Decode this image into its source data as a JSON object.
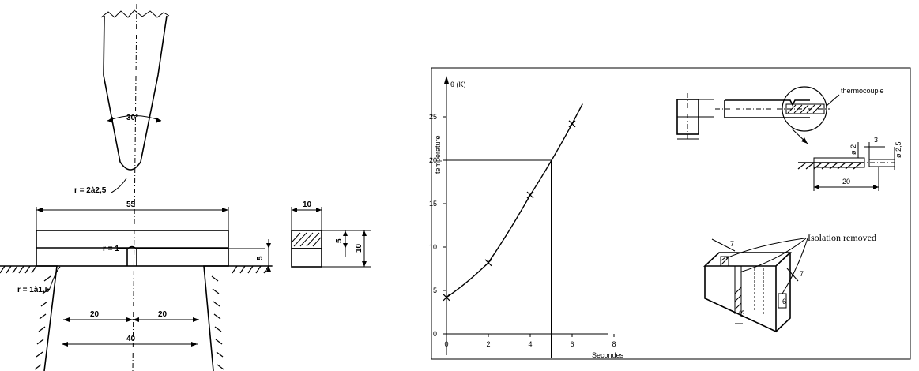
{
  "left_drawing": {
    "angle_label": "30°",
    "tip_radius_label": "r = 2à2,5",
    "width_55": "55",
    "notch_radius_label": "r = 1",
    "notch_depth_label": "5",
    "support_radius_label": "r = 1à1,5",
    "dim_20_left": "20",
    "dim_20_right": "20",
    "dim_40": "40",
    "section_width": "10",
    "section_5": "5",
    "section_10": "10"
  },
  "chart": {
    "y_unit_label": "θ (K)",
    "ylabel": "temperature",
    "xlabel": "Secondes"
  },
  "chart_data": {
    "type": "line",
    "x": [
      0,
      2,
      4,
      6
    ],
    "y": [
      4.2,
      8.2,
      16.0,
      24.2
    ],
    "xticks": [
      "0",
      "2",
      "4",
      "6",
      "8"
    ],
    "yticks": [
      "0",
      "5",
      "10",
      "15",
      "20",
      "25"
    ],
    "xlim": [
      0,
      9
    ],
    "ylim": [
      0,
      27
    ],
    "reference_point": [
      5,
      20
    ]
  },
  "right_drawings": {
    "thermocouple_label": "thermocouple",
    "dim_o2": "ø 2",
    "dim_3": "3",
    "dim_o25": "ø 2,5",
    "dim_20": "20",
    "isolation_label": "Isolation removed",
    "dim_7_top": "7",
    "dim_7_right": "7",
    "dim_3_bottom": "3"
  }
}
